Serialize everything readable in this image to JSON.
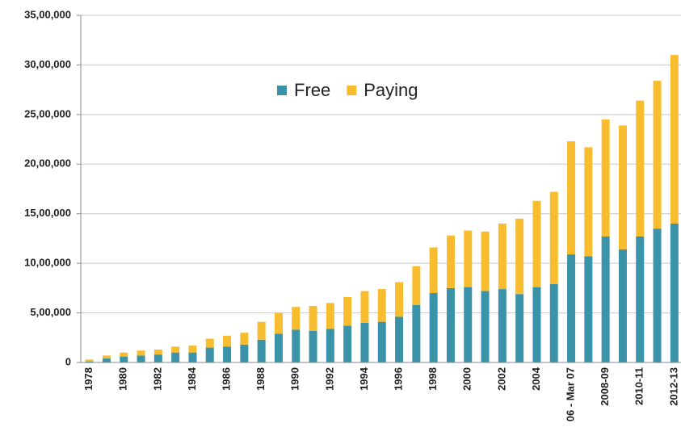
{
  "chart_data": {
    "type": "stacked_bar",
    "categories": [
      "1978",
      null,
      "1980",
      null,
      "1982",
      null,
      "1984",
      null,
      "1986",
      null,
      "1988",
      null,
      "1990",
      null,
      "1992",
      null,
      "1994",
      null,
      "1996",
      null,
      "1998",
      null,
      "2000",
      null,
      "2002",
      null,
      "2004",
      null,
      "06 - Mar 07",
      null,
      "2008-09",
      null,
      "2010-11",
      null,
      "2012-13"
    ],
    "series": [
      {
        "name": "Free",
        "color": "#3b93a9",
        "values": [
          10000,
          40000,
          60000,
          70000,
          80000,
          100000,
          100000,
          150000,
          160000,
          180000,
          230000,
          290000,
          330000,
          320000,
          340000,
          370000,
          400000,
          410000,
          460000,
          580000,
          700000,
          750000,
          760000,
          720000,
          740000,
          690000,
          760000,
          790000,
          1090000,
          1070000,
          1270000,
          1140000,
          1270000,
          1350000,
          1400000
        ]
      },
      {
        "name": "Paying",
        "color": "#f8bd2f",
        "values": [
          20000,
          30000,
          40000,
          50000,
          50000,
          60000,
          70000,
          90000,
          110000,
          120000,
          180000,
          210000,
          230000,
          250000,
          260000,
          290000,
          320000,
          330000,
          350000,
          390000,
          460000,
          530000,
          570000,
          600000,
          660000,
          760000,
          870000,
          930000,
          1140000,
          1100000,
          1180000,
          1250000,
          1370000,
          1490000,
          1700000
        ]
      }
    ],
    "ylim": [
      0,
      3500000
    ],
    "yticks": [
      0,
      {
        "value": 500000,
        "label": "5,00,000"
      },
      {
        "value": 1000000,
        "label": "10,00,000"
      },
      {
        "value": 1500000,
        "label": "15,00,000"
      },
      {
        "value": 2000000,
        "label": "20,00,000"
      },
      {
        "value": 2500000,
        "label": "25,00,000"
      },
      {
        "value": 3000000,
        "label": "30,00,000"
      },
      {
        "value": 3500000,
        "label": "35,00,000"
      }
    ],
    "grid": true,
    "legend": "top-center"
  }
}
